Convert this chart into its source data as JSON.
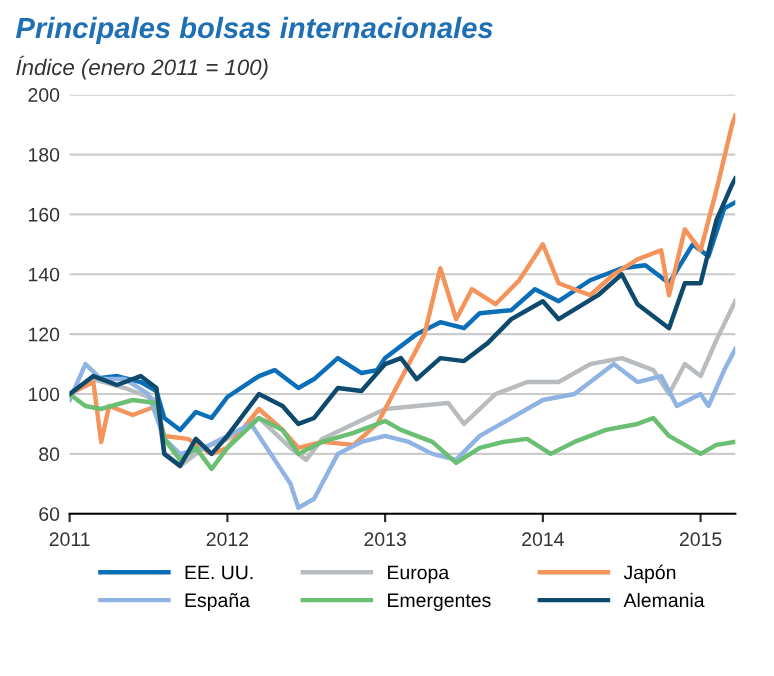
{
  "chart_data": {
    "type": "line",
    "title": "Principales bolsas internacionales",
    "subtitle": "Índice (enero 2011 = 100)",
    "xlim": [
      2011,
      2015.22
    ],
    "xticks": [
      2011,
      2012,
      2013,
      2014,
      2015
    ],
    "ylim": [
      60,
      200
    ],
    "yticks": [
      60,
      80,
      100,
      120,
      140,
      160,
      180,
      200
    ],
    "grid": "y",
    "legend": "bottom",
    "line_style": "solid",
    "marker": "none",
    "series": [
      {
        "name": "EE. UU.",
        "color": "#0a6fb8",
        "x": [
          2011,
          2011.15,
          2011.3,
          2011.45,
          2011.55,
          2011.6,
          2011.7,
          2011.8,
          2011.9,
          2012.0,
          2012.2,
          2012.3,
          2012.45,
          2012.55,
          2012.7,
          2012.85,
          2012.95,
          2013.0,
          2013.2,
          2013.35,
          2013.5,
          2013.6,
          2013.8,
          2013.95,
          2014.1,
          2014.3,
          2014.5,
          2014.65,
          2014.8,
          2014.95,
          2015.05,
          2015.15,
          2015.22
        ],
        "values": [
          100,
          105,
          106,
          104,
          101,
          92,
          88,
          94,
          92,
          99,
          106,
          108,
          102,
          105,
          112,
          107,
          108,
          112,
          120,
          124,
          122,
          127,
          128,
          135,
          131,
          138,
          142,
          143,
          137,
          150,
          146,
          162,
          164
        ]
      },
      {
        "name": "Europa",
        "color": "#b8bcbf",
        "x": [
          2011,
          2011.15,
          2011.35,
          2011.55,
          2011.6,
          2011.7,
          2011.85,
          2012.0,
          2012.2,
          2012.4,
          2012.5,
          2012.6,
          2012.8,
          2013.0,
          2013.2,
          2013.4,
          2013.5,
          2013.7,
          2013.9,
          2014.1,
          2014.3,
          2014.5,
          2014.7,
          2014.8,
          2014.9,
          2015.0,
          2015.1,
          2015.22
        ],
        "values": [
          100,
          105,
          102,
          98,
          80,
          76,
          82,
          85,
          92,
          82,
          78,
          85,
          90,
          95,
          96,
          97,
          90,
          100,
          104,
          104,
          110,
          112,
          108,
          100,
          110,
          106,
          118,
          131
        ]
      },
      {
        "name": "Japón",
        "color": "#f4935a",
        "x": [
          2011,
          2011.15,
          2011.2,
          2011.25,
          2011.4,
          2011.55,
          2011.6,
          2011.75,
          2011.9,
          2012.0,
          2012.2,
          2012.35,
          2012.45,
          2012.6,
          2012.8,
          2012.95,
          2013.1,
          2013.25,
          2013.35,
          2013.45,
          2013.55,
          2013.7,
          2013.85,
          2014.0,
          2014.1,
          2014.3,
          2014.45,
          2014.6,
          2014.75,
          2014.8,
          2014.9,
          2015.0,
          2015.1,
          2015.2,
          2015.22
        ],
        "values": [
          100,
          104,
          84,
          96,
          93,
          96,
          86,
          85,
          80,
          82,
          95,
          88,
          82,
          84,
          83,
          90,
          105,
          120,
          142,
          125,
          135,
          130,
          138,
          150,
          137,
          133,
          140,
          145,
          148,
          133,
          155,
          148,
          168,
          190,
          193
        ]
      },
      {
        "name": "España",
        "color": "#8fb4e3",
        "x": [
          2011,
          2011.1,
          2011.2,
          2011.35,
          2011.5,
          2011.6,
          2011.7,
          2011.85,
          2012.0,
          2012.15,
          2012.3,
          2012.4,
          2012.45,
          2012.55,
          2012.7,
          2012.85,
          2013.0,
          2013.15,
          2013.3,
          2013.45,
          2013.6,
          2013.8,
          2014.0,
          2014.2,
          2014.45,
          2014.6,
          2014.75,
          2014.85,
          2015.0,
          2015.05,
          2015.15,
          2015.22
        ],
        "values": [
          98,
          110,
          105,
          105,
          100,
          85,
          80,
          82,
          86,
          90,
          78,
          70,
          62,
          65,
          80,
          84,
          86,
          84,
          80,
          78,
          86,
          92,
          98,
          100,
          110,
          104,
          106,
          96,
          100,
          96,
          108,
          115
        ]
      },
      {
        "name": "Emergentes",
        "color": "#6bbf73",
        "x": [
          2011,
          2011.1,
          2011.2,
          2011.4,
          2011.55,
          2011.6,
          2011.7,
          2011.8,
          2011.9,
          2012.0,
          2012.2,
          2012.35,
          2012.45,
          2012.6,
          2012.8,
          2013.0,
          2013.1,
          2013.3,
          2013.45,
          2013.6,
          2013.75,
          2013.9,
          2014.05,
          2014.2,
          2014.4,
          2014.6,
          2014.7,
          2014.8,
          2014.9,
          2015.0,
          2015.1,
          2015.22
        ],
        "values": [
          100,
          96,
          95,
          98,
          97,
          85,
          78,
          82,
          75,
          82,
          92,
          88,
          80,
          84,
          87,
          91,
          88,
          84,
          77,
          82,
          84,
          85,
          80,
          84,
          88,
          90,
          92,
          86,
          83,
          80,
          83,
          84
        ]
      },
      {
        "name": "Alemania",
        "color": "#0d4a6e",
        "x": [
          2011,
          2011.15,
          2011.3,
          2011.45,
          2011.55,
          2011.6,
          2011.7,
          2011.8,
          2011.9,
          2012.0,
          2012.2,
          2012.35,
          2012.45,
          2012.55,
          2012.7,
          2012.85,
          2013.0,
          2013.1,
          2013.2,
          2013.35,
          2013.5,
          2013.65,
          2013.8,
          2014.0,
          2014.1,
          2014.35,
          2014.5,
          2014.6,
          2014.8,
          2014.9,
          2015.0,
          2015.1,
          2015.2,
          2015.22
        ],
        "values": [
          100,
          106,
          103,
          106,
          102,
          80,
          76,
          85,
          80,
          86,
          100,
          96,
          90,
          92,
          102,
          101,
          110,
          112,
          105,
          112,
          111,
          117,
          125,
          131,
          125,
          133,
          140,
          130,
          122,
          137,
          137,
          158,
          170,
          172
        ]
      }
    ]
  }
}
